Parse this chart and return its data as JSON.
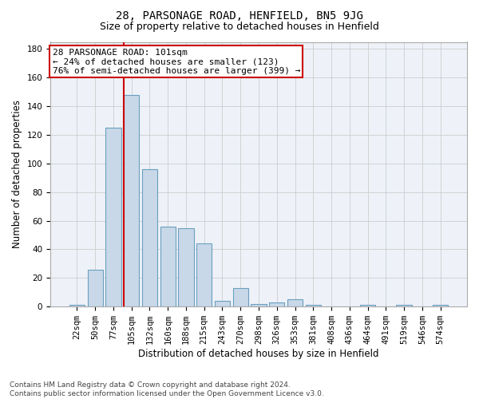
{
  "title": "28, PARSONAGE ROAD, HENFIELD, BN5 9JG",
  "subtitle": "Size of property relative to detached houses in Henfield",
  "xlabel": "Distribution of detached houses by size in Henfield",
  "ylabel": "Number of detached properties",
  "categories": [
    "22sqm",
    "50sqm",
    "77sqm",
    "105sqm",
    "132sqm",
    "160sqm",
    "188sqm",
    "215sqm",
    "243sqm",
    "270sqm",
    "298sqm",
    "326sqm",
    "353sqm",
    "381sqm",
    "408sqm",
    "436sqm",
    "464sqm",
    "491sqm",
    "519sqm",
    "546sqm",
    "574sqm"
  ],
  "values": [
    1,
    26,
    125,
    148,
    96,
    56,
    55,
    44,
    4,
    13,
    2,
    3,
    5,
    1,
    0,
    0,
    1,
    0,
    1,
    0,
    1
  ],
  "bar_color": "#c8d8e8",
  "bar_edge_color": "#6a9fc0",
  "vline_x_index": 3,
  "vline_color": "#cc0000",
  "annotation_text": "28 PARSONAGE ROAD: 101sqm\n← 24% of detached houses are smaller (123)\n76% of semi-detached houses are larger (399) →",
  "annotation_box_color": "#ffffff",
  "annotation_box_edge_color": "#cc0000",
  "ylim": [
    0,
    185
  ],
  "yticks": [
    0,
    20,
    40,
    60,
    80,
    100,
    120,
    140,
    160,
    180
  ],
  "grid_color": "#cccccc",
  "background_color": "#eef2f8",
  "footer_text": "Contains HM Land Registry data © Crown copyright and database right 2024.\nContains public sector information licensed under the Open Government Licence v3.0.",
  "title_fontsize": 10,
  "subtitle_fontsize": 9,
  "xlabel_fontsize": 8.5,
  "ylabel_fontsize": 8.5,
  "tick_fontsize": 7.5,
  "annotation_fontsize": 8,
  "footer_fontsize": 6.5
}
